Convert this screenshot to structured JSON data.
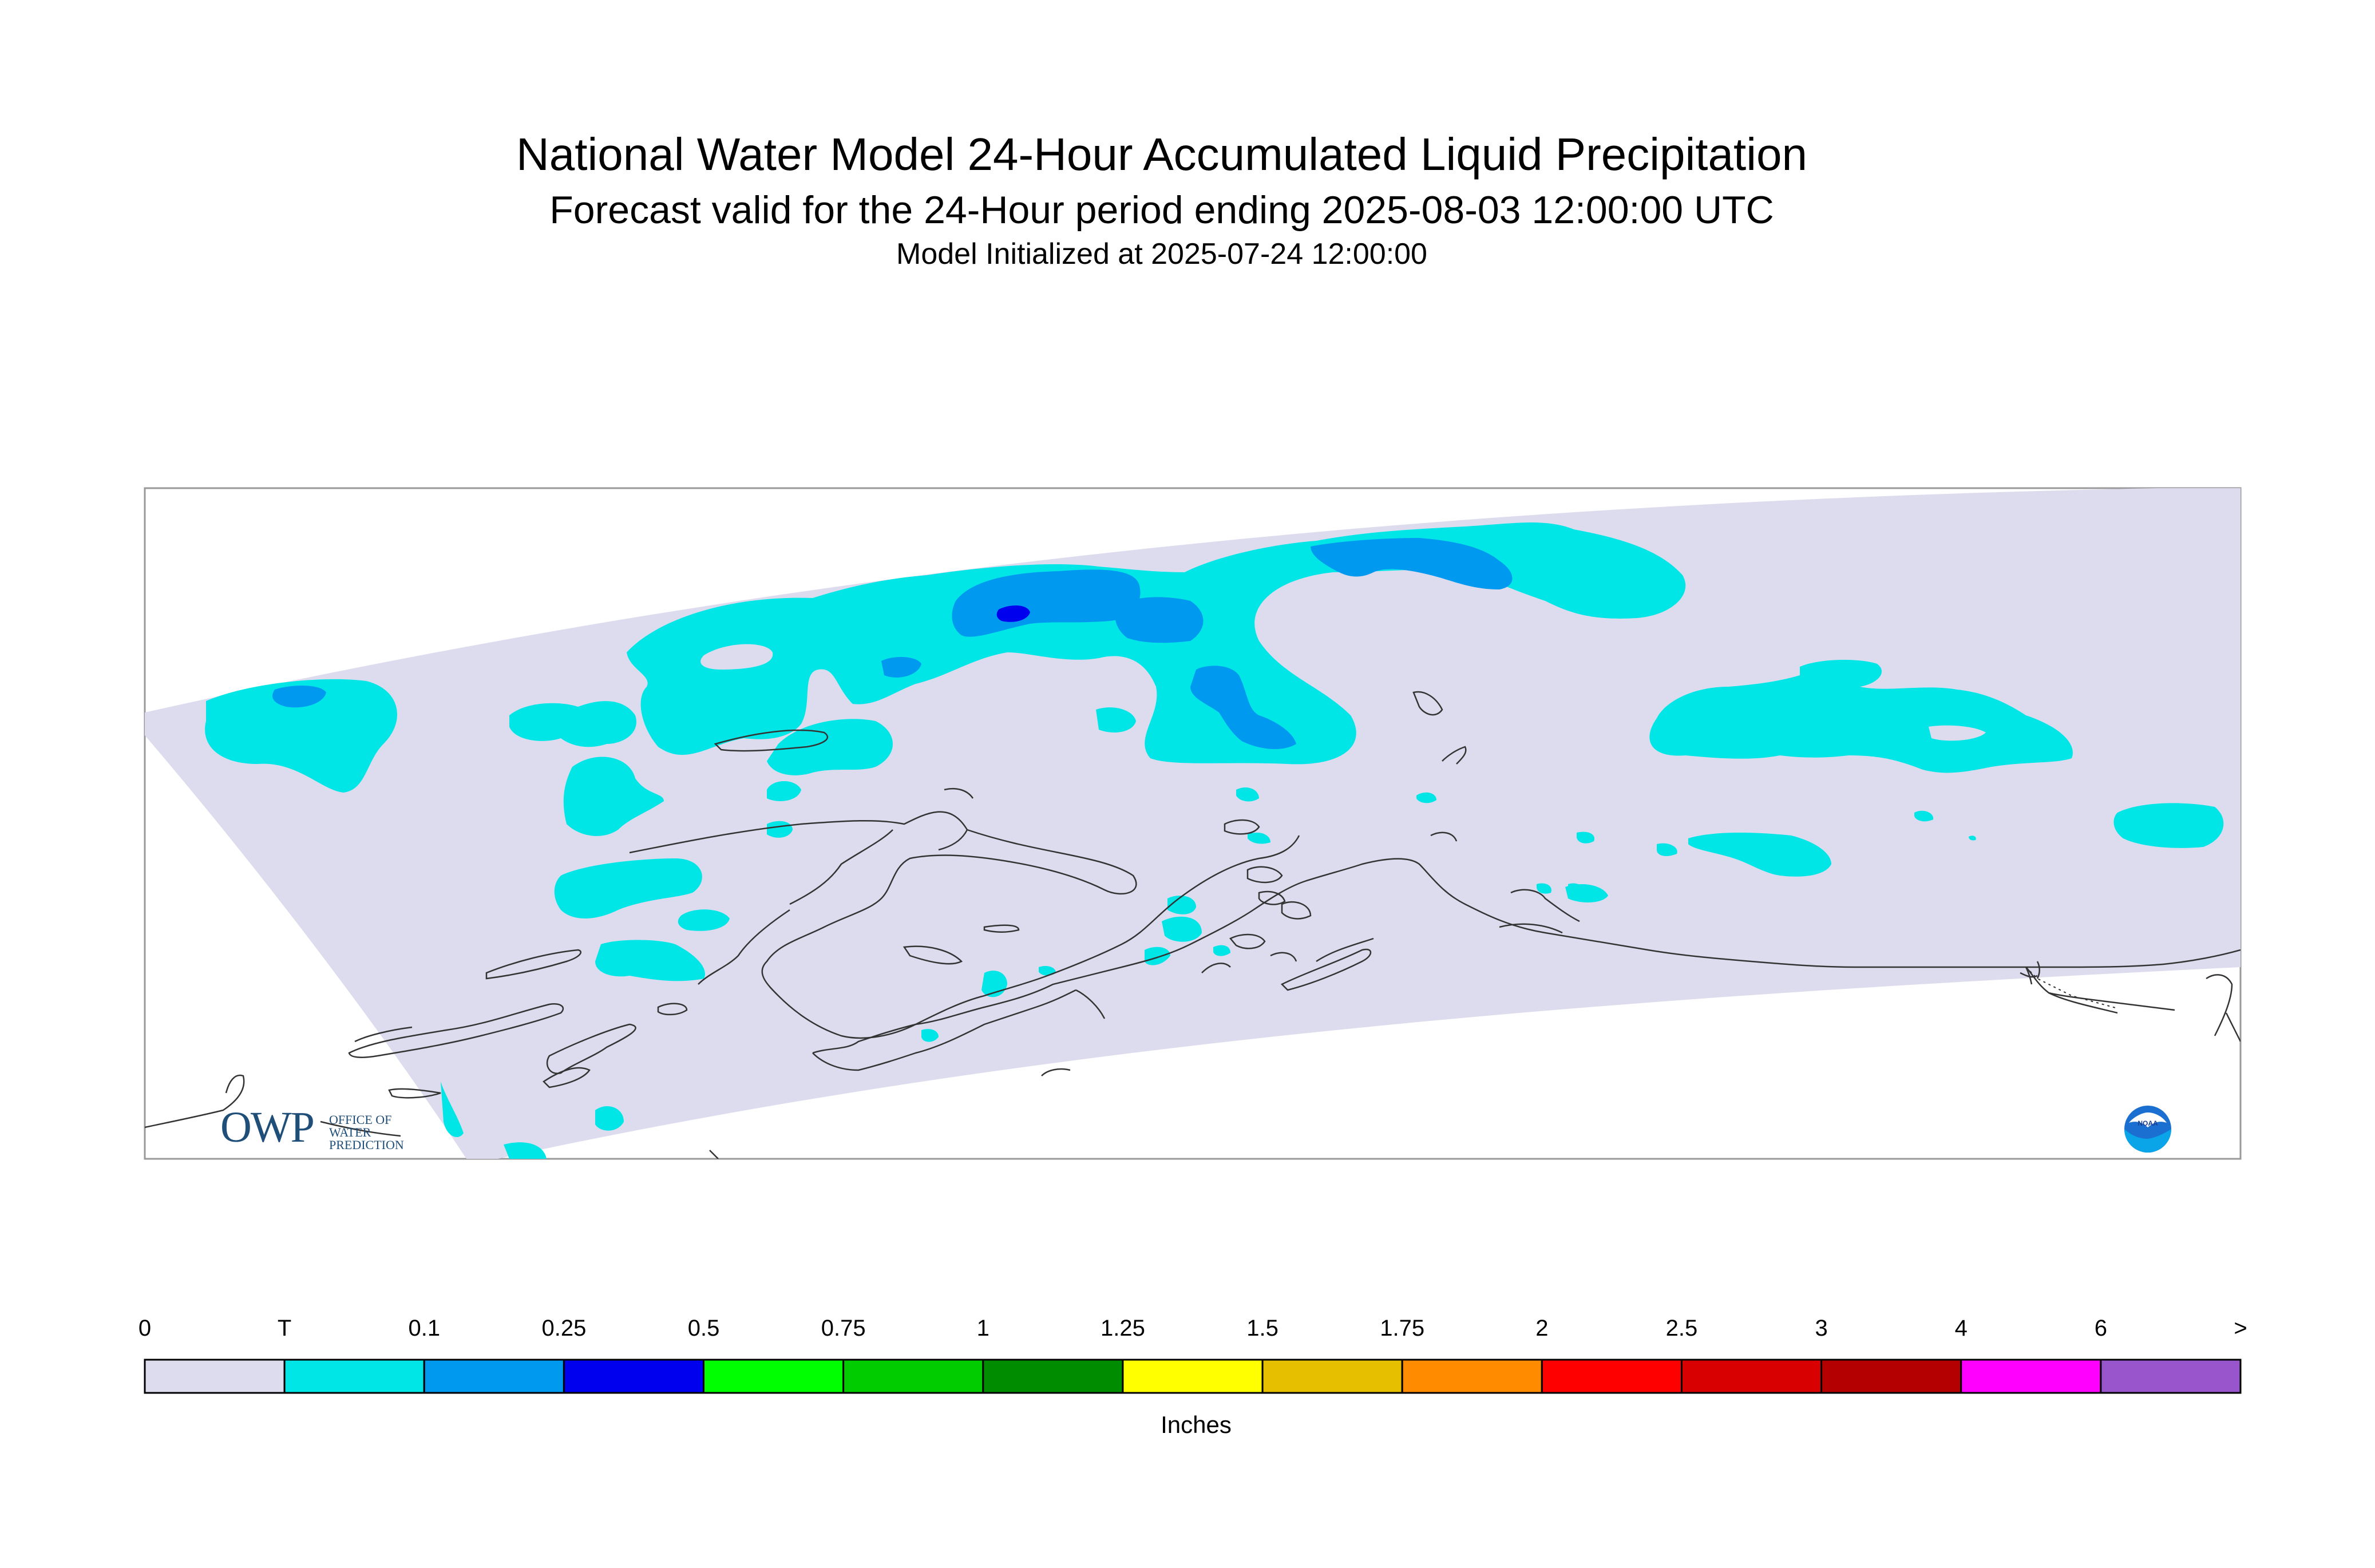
{
  "header": {
    "title": "National Water Model 24-Hour Accumulated Liquid Precipitation",
    "subtitle": "Forecast valid for the 24-Hour period ending 2025-08-03 12:00:00 UTC",
    "init_line": "Model Initialized at 2025-07-24 12:00:00"
  },
  "colorbar": {
    "labels": [
      "0",
      "T",
      "0.1",
      "0.25",
      "0.5",
      "0.75",
      "1",
      "1.25",
      "1.5",
      "1.75",
      "2",
      "2.5",
      "3",
      "4",
      "6",
      ">"
    ],
    "colors": [
      "#dcdcee",
      "#00e6e6",
      "#0099f0",
      "#0000ee",
      "#00ff00",
      "#00cc00",
      "#008c00",
      "#ffff00",
      "#e6c000",
      "#ff8c00",
      "#ff0000",
      "#d80000",
      "#b40000",
      "#ff00ff",
      "#9955cc"
    ],
    "units": "Inches"
  },
  "logos": {
    "owp_text": "OWP",
    "owp_sub": [
      "OFFICE OF",
      "WATER",
      "PREDICTION"
    ],
    "noaa_text": "NOAA"
  }
}
